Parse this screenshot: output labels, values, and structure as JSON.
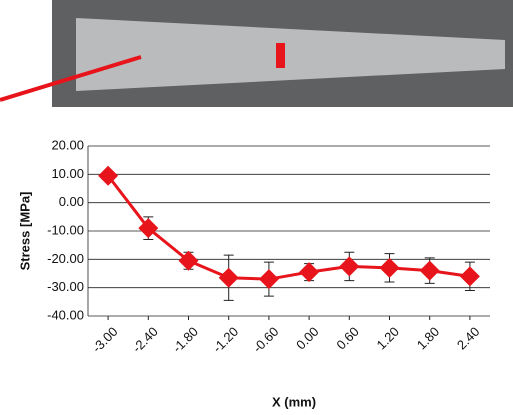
{
  "chart_data": {
    "type": "line",
    "y_label": "Stress [MPa]",
    "x_label": "X (mm)",
    "categories": [
      "-3.00",
      "-2.40",
      "-1.80",
      "-1.20",
      "-0.60",
      "0.00",
      "0.60",
      "1.20",
      "1.80",
      "2.40"
    ],
    "series": [
      {
        "color": "#e8141b",
        "values": [
          9.5,
          -9,
          -20.5,
          -26.5,
          -27,
          -24.5,
          -22.5,
          -23,
          -24,
          -26
        ],
        "errors": [
          0,
          4,
          3,
          8,
          6,
          3,
          5,
          5,
          4.5,
          5
        ]
      }
    ],
    "ylim": [
      -40,
      20
    ],
    "yticks": [
      {
        "value": -40,
        "label": "-40.00"
      },
      {
        "value": -30,
        "label": "-30.00"
      },
      {
        "value": -20,
        "label": "-20.00"
      },
      {
        "value": -10,
        "label": "-10.00"
      },
      {
        "value": 0,
        "label": "0.00"
      },
      {
        "value": 10,
        "label": "10.00"
      },
      {
        "value": 20,
        "label": "20.00"
      }
    ],
    "grid": true
  }
}
